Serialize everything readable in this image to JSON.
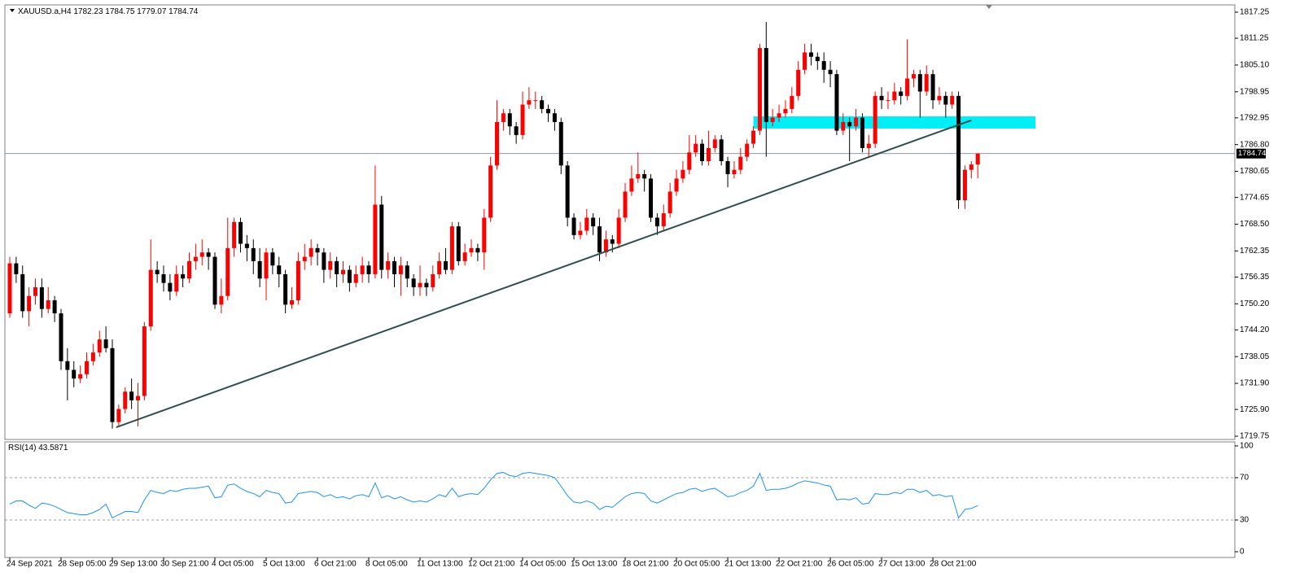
{
  "chart_data": [
    {
      "type": "candlestick",
      "title": "XAUUSD.a,H4",
      "up_color": "#ff0000",
      "down_color": "#000000",
      "last_price_line": true,
      "xlim": [
        -0.76,
        191.1
      ],
      "ylim": [
        1719.0,
        1818.93
      ],
      "yticks": [
        1817.25,
        1811.25,
        {
          "value": 1805.1,
          "label": "1805.10"
        },
        1798.95,
        1792.95,
        {
          "value": 1786.8,
          "label": "1786.80"
        },
        1780.65,
        1774.65,
        {
          "value": 1768.5,
          "label": "1768.50"
        },
        1762.35,
        1756.35,
        {
          "value": 1750.2,
          "label": "1750.20"
        },
        {
          "value": 1744.2,
          "label": "1744.20"
        },
        1738.05,
        {
          "value": 1731.9,
          "label": "1731.90"
        },
        {
          "value": 1725.9,
          "label": "1725.90"
        },
        1719.75
      ],
      "xticks": [
        {
          "value": 0,
          "label": "24 Sep 2021"
        },
        {
          "value": 8,
          "label": "28 Sep 05:00"
        },
        {
          "value": 16,
          "label": "29 Sep 13:00"
        },
        {
          "value": 24,
          "label": "30 Sep 21:00"
        },
        {
          "value": 32,
          "label": "4 Oct 05:00"
        },
        {
          "value": 40,
          "label": "5 Oct 13:00"
        },
        {
          "value": 48,
          "label": "6 Oct 21:00"
        },
        {
          "value": 56,
          "label": "8 Oct 05:00"
        },
        {
          "value": 64,
          "label": "11 Oct 13:00"
        },
        {
          "value": 72,
          "label": "12 Oct 21:00"
        },
        {
          "value": 80,
          "label": "14 Oct 05:00"
        },
        {
          "value": 88,
          "label": "15 Oct 13:00"
        },
        {
          "value": 96,
          "label": "18 Oct 21:00"
        },
        {
          "value": 104,
          "label": "20 Oct 05:00"
        },
        {
          "value": 112,
          "label": "21 Oct 13:00"
        },
        {
          "value": 120,
          "label": "22 Oct 21:00"
        },
        {
          "value": 128,
          "label": "26 Oct 05:00"
        },
        {
          "value": 136,
          "label": "27 Oct 13:00"
        },
        {
          "value": 144,
          "label": "28 Oct 21:00"
        }
      ],
      "trendline": {
        "color": "#2f4f4f",
        "start": [
          16.6,
          1721.8
        ],
        "end": [
          150,
          1792.4
        ]
      },
      "zone": {
        "color": "#00eef5",
        "x": [
          116,
          160
        ],
        "y": [
          1790.5,
          1793.3
        ]
      },
      "candles": [
        [
          1748,
          1761,
          1747,
          1759.5
        ],
        [
          1759.5,
          1761,
          1755,
          1757
        ],
        [
          1757,
          1759,
          1747,
          1748.5
        ],
        [
          1748.5,
          1754,
          1745,
          1752
        ],
        [
          1752,
          1756,
          1750,
          1754
        ],
        [
          1754,
          1756,
          1747,
          1749
        ],
        [
          1749,
          1754,
          1748,
          1751
        ],
        [
          1751,
          1752,
          1746,
          1748
        ],
        [
          1748,
          1749,
          1735,
          1737
        ],
        [
          1737,
          1740,
          1728,
          1735
        ],
        [
          1735,
          1737,
          1731,
          1733
        ],
        [
          1733,
          1736,
          1732,
          1734
        ],
        [
          1734,
          1739,
          1733,
          1737
        ],
        [
          1737,
          1741,
          1736,
          1739
        ],
        [
          1739,
          1744,
          1738,
          1742
        ],
        [
          1742,
          1745,
          1739,
          1740
        ],
        [
          1740,
          1742,
          1721.5,
          1723
        ],
        [
          1723,
          1727,
          1722,
          1726
        ],
        [
          1726,
          1731,
          1725,
          1730
        ],
        [
          1730,
          1733,
          1726,
          1728
        ],
        [
          1728,
          1732,
          1722,
          1729
        ],
        [
          1729,
          1746,
          1728,
          1745
        ],
        [
          1745,
          1765,
          1744,
          1758
        ],
        [
          1758,
          1760,
          1755,
          1757
        ],
        [
          1757,
          1759,
          1753,
          1755
        ],
        [
          1755,
          1757,
          1751,
          1753
        ],
        [
          1753,
          1759,
          1752,
          1757
        ],
        [
          1757,
          1759,
          1754,
          1756
        ],
        [
          1756,
          1762,
          1755,
          1760
        ],
        [
          1760,
          1764,
          1758,
          1761
        ],
        [
          1761,
          1765,
          1759,
          1762
        ],
        [
          1762,
          1763,
          1758,
          1761
        ],
        [
          1761,
          1762,
          1749,
          1750
        ],
        [
          1750,
          1756,
          1748,
          1752
        ],
        [
          1752,
          1770,
          1751,
          1763
        ],
        [
          1763,
          1770,
          1761,
          1769
        ],
        [
          1769,
          1770,
          1762,
          1764
        ],
        [
          1764,
          1766,
          1760,
          1763
        ],
        [
          1763,
          1765,
          1757,
          1760
        ],
        [
          1760,
          1763,
          1754,
          1756
        ],
        [
          1756,
          1763,
          1751,
          1762
        ],
        [
          1762,
          1763,
          1757,
          1759
        ],
        [
          1759,
          1761,
          1754,
          1757
        ],
        [
          1757,
          1758,
          1748,
          1750
        ],
        [
          1750,
          1754,
          1749,
          1751
        ],
        [
          1751,
          1762,
          1750,
          1760
        ],
        [
          1760,
          1764,
          1758,
          1761
        ],
        [
          1761,
          1765,
          1759,
          1763
        ],
        [
          1763,
          1764,
          1759,
          1762
        ],
        [
          1762,
          1763,
          1755,
          1758
        ],
        [
          1758,
          1762,
          1756,
          1760
        ],
        [
          1760,
          1761,
          1754,
          1757
        ],
        [
          1757,
          1760,
          1755,
          1758
        ],
        [
          1758,
          1759,
          1753,
          1755
        ],
        [
          1755,
          1759,
          1754,
          1757
        ],
        [
          1757,
          1761,
          1755,
          1759
        ],
        [
          1759,
          1760,
          1755,
          1757
        ],
        [
          1757,
          1782,
          1756,
          1773
        ],
        [
          1773,
          1775,
          1756,
          1758
        ],
        [
          1758,
          1762,
          1756,
          1760
        ],
        [
          1760,
          1761,
          1754,
          1757
        ],
        [
          1757,
          1761,
          1752,
          1759
        ],
        [
          1759,
          1760,
          1754,
          1756
        ],
        [
          1756,
          1757,
          1752,
          1754
        ],
        [
          1754,
          1759,
          1752,
          1755
        ],
        [
          1755,
          1756,
          1752,
          1754
        ],
        [
          1754,
          1759,
          1753,
          1757
        ],
        [
          1757,
          1762,
          1756,
          1760
        ],
        [
          1760,
          1763,
          1757,
          1758
        ],
        [
          1758,
          1769,
          1757,
          1768
        ],
        [
          1768,
          1769,
          1759,
          1760
        ],
        [
          1760,
          1764,
          1759,
          1762
        ],
        [
          1762,
          1765,
          1761,
          1763
        ],
        [
          1763,
          1764,
          1760,
          1762
        ],
        [
          1762,
          1772,
          1758,
          1770
        ],
        [
          1770,
          1784,
          1769,
          1782
        ],
        [
          1782,
          1797,
          1781,
          1792
        ],
        [
          1792,
          1795,
          1790,
          1794
        ],
        [
          1794,
          1795,
          1789,
          1791
        ],
        [
          1791,
          1792,
          1787,
          1789
        ],
        [
          1789,
          1799,
          1788,
          1796
        ],
        [
          1796,
          1800,
          1795,
          1797
        ],
        [
          1797,
          1799,
          1795,
          1797
        ],
        [
          1797,
          1798,
          1794,
          1795
        ],
        [
          1795,
          1796,
          1792,
          1794
        ],
        [
          1794,
          1795,
          1790,
          1792
        ],
        [
          1792,
          1793,
          1780,
          1782
        ],
        [
          1782,
          1783,
          1768,
          1770
        ],
        [
          1770,
          1771,
          1765,
          1766
        ],
        [
          1766,
          1769,
          1765,
          1767
        ],
        [
          1767,
          1772,
          1766,
          1770
        ],
        [
          1770,
          1771,
          1766,
          1768
        ],
        [
          1768,
          1770,
          1760,
          1762
        ],
        [
          1762,
          1767,
          1761,
          1765
        ],
        [
          1765,
          1766,
          1762,
          1764
        ],
        [
          1764,
          1772,
          1763,
          1770
        ],
        [
          1770,
          1778,
          1769,
          1776
        ],
        [
          1776,
          1782,
          1775,
          1779
        ],
        [
          1779,
          1785,
          1778,
          1780
        ],
        [
          1780,
          1781,
          1776,
          1779
        ],
        [
          1779,
          1780,
          1769,
          1770
        ],
        [
          1770,
          1771,
          1766,
          1768
        ],
        [
          1768,
          1773,
          1767,
          1771
        ],
        [
          1771,
          1778,
          1770,
          1776
        ],
        [
          1776,
          1781,
          1775,
          1779
        ],
        [
          1779,
          1783,
          1778,
          1781
        ],
        [
          1781,
          1789,
          1780,
          1785
        ],
        [
          1785,
          1789,
          1784,
          1787
        ],
        [
          1787,
          1788,
          1782,
          1783
        ],
        [
          1783,
          1790,
          1782,
          1786
        ],
        [
          1786,
          1789,
          1785,
          1788
        ],
        [
          1788,
          1789,
          1782,
          1783
        ],
        [
          1783,
          1784,
          1777,
          1780
        ],
        [
          1780,
          1783,
          1779,
          1781
        ],
        [
          1781,
          1786,
          1780,
          1784
        ],
        [
          1784,
          1788,
          1783,
          1787
        ],
        [
          1787,
          1791,
          1786,
          1790
        ],
        [
          1790,
          1810,
          1789,
          1809
        ],
        [
          1809,
          1815,
          1784,
          1792
        ],
        [
          1792,
          1795,
          1791,
          1793
        ],
        [
          1793,
          1796,
          1792,
          1794
        ],
        [
          1794,
          1797,
          1793,
          1795
        ],
        [
          1795,
          1800,
          1794,
          1798
        ],
        [
          1798,
          1806,
          1797,
          1804
        ],
        [
          1804,
          1810,
          1803,
          1808
        ],
        [
          1808,
          1810,
          1805,
          1807
        ],
        [
          1807,
          1808,
          1804,
          1806
        ],
        [
          1806,
          1808,
          1801,
          1804
        ],
        [
          1804,
          1806,
          1800,
          1803
        ],
        [
          1803,
          1804,
          1789,
          1790
        ],
        [
          1790,
          1794,
          1789,
          1792
        ],
        [
          1792,
          1793,
          1783,
          1791
        ],
        [
          1791,
          1795,
          1790,
          1793
        ],
        [
          1793,
          1794,
          1785,
          1786
        ],
        [
          1786,
          1789,
          1784,
          1787
        ],
        [
          1787,
          1799,
          1786,
          1798
        ],
        [
          1798,
          1800,
          1795,
          1797
        ],
        [
          1797,
          1799,
          1795,
          1797
        ],
        [
          1797,
          1801,
          1796,
          1799
        ],
        [
          1799,
          1800,
          1796,
          1798
        ],
        [
          1798,
          1811,
          1797,
          1802
        ],
        [
          1802,
          1804,
          1800,
          1803
        ],
        [
          1803,
          1804,
          1793,
          1799
        ],
        [
          1799,
          1805,
          1798,
          1803
        ],
        [
          1803,
          1804,
          1795,
          1797
        ],
        [
          1797,
          1800,
          1796,
          1798
        ],
        [
          1798,
          1799,
          1793,
          1796
        ],
        [
          1796,
          1799,
          1795,
          1798
        ],
        [
          1798,
          1799,
          1772,
          1774
        ],
        [
          1774,
          1782,
          1772,
          1781
        ],
        [
          1781,
          1783,
          1779,
          1782.23
        ],
        [
          1782.23,
          1784.75,
          1779.07,
          1784.74
        ]
      ]
    },
    {
      "type": "line",
      "title": "RSI(14)",
      "color": "#1e90ff",
      "xlim": [
        -0.76,
        191.1
      ],
      "ylim": [
        -5.4,
        103.8
      ],
      "yticks": [
        100,
        70,
        30,
        0
      ],
      "levels": [
        70,
        30
      ],
      "values": [
        45,
        48,
        48,
        44,
        41,
        46,
        45,
        43,
        40,
        37,
        36,
        35,
        35,
        37,
        40,
        45,
        32,
        35,
        38,
        38,
        37,
        49,
        58,
        56,
        55,
        58,
        57,
        59,
        60,
        60,
        61,
        62,
        51,
        52,
        63,
        64,
        60,
        57,
        55,
        52,
        58,
        56,
        55,
        46,
        47,
        55,
        56,
        57,
        56,
        52,
        54,
        51,
        52,
        50,
        53,
        54,
        52,
        65,
        51,
        53,
        50,
        52,
        49,
        47,
        48,
        47,
        50,
        54,
        52,
        60,
        52,
        54,
        55,
        54,
        60,
        68,
        74,
        75,
        72,
        71,
        74,
        75,
        74,
        73,
        72,
        70,
        62,
        53,
        47,
        46,
        48,
        46,
        40,
        43,
        42,
        47,
        52,
        55,
        56,
        55,
        48,
        46,
        49,
        52,
        55,
        56,
        59,
        60,
        57,
        59,
        60,
        56,
        52,
        53,
        56,
        58,
        62,
        74,
        58,
        59,
        59,
        60,
        62,
        65,
        67,
        66,
        65,
        63,
        62,
        49,
        50,
        49,
        51,
        45,
        46,
        55,
        54,
        54,
        56,
        55,
        59,
        59,
        56,
        58,
        53,
        54,
        52,
        53,
        32,
        40,
        41,
        43.5871
      ]
    }
  ]
}
